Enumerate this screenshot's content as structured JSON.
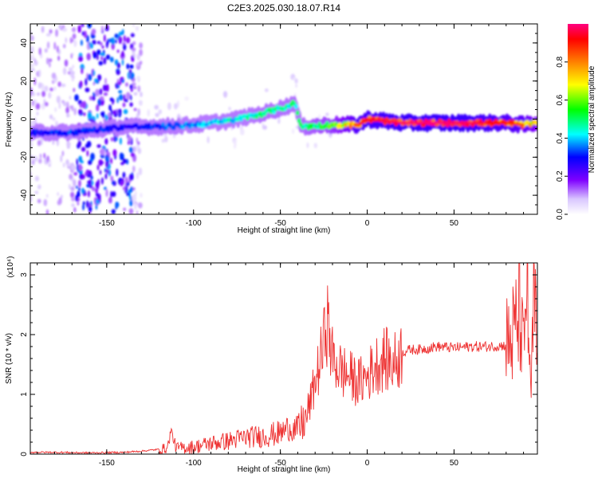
{
  "title": "C2E3.2025.030.18.07.R14",
  "chart_data": [
    {
      "type": "heatmap",
      "xlabel": "Height of straight line (km)",
      "ylabel": "Frequency (Hz)",
      "xlim": [
        -194,
        98
      ],
      "ylim": [
        -50,
        50
      ],
      "xticks": [
        -150,
        -100,
        -50,
        0,
        50
      ],
      "yticks": [
        -40,
        -20,
        0,
        20,
        40
      ],
      "colorbar": {
        "label": "Normalized spectral amplitude",
        "range": [
          0,
          1
        ],
        "ticks": [
          0.0,
          0.2,
          0.4,
          0.6,
          0.8
        ]
      },
      "ridge": {
        "x": [
          -194,
          -170,
          -140,
          -120,
          -100,
          -80,
          -60,
          -45,
          -42,
          -38,
          -20,
          -5,
          0,
          20,
          40,
          60,
          80,
          90,
          98
        ],
        "freq": [
          -7,
          -7,
          -4,
          -4,
          -3,
          -1,
          3,
          7,
          9,
          -4,
          -3,
          -3,
          0,
          -2,
          -2,
          -2,
          -2,
          -3,
          -2
        ],
        "amplitude": [
          0.3,
          0.35,
          0.3,
          0.35,
          0.4,
          0.45,
          0.5,
          0.5,
          0.5,
          0.5,
          0.6,
          0.9,
          0.95,
          0.98,
          1.0,
          0.98,
          0.9,
          0.85,
          0.7
        ]
      }
    },
    {
      "type": "line",
      "xlabel": "Height of straight line (km)",
      "ylabel": "SNR (10 * v/v)",
      "yscale_note": "(x10⁴)",
      "xlim": [
        -194,
        98
      ],
      "ylim": [
        0,
        3.2
      ],
      "xticks": [
        -150,
        -100,
        -50,
        0,
        50
      ],
      "yticks": [
        0,
        1,
        2,
        3
      ],
      "series": [
        {
          "color": "#ee3333",
          "x": [
            -194,
            -180,
            -160,
            -140,
            -130,
            -120,
            -115,
            -113,
            -110,
            -100,
            -90,
            -80,
            -70,
            -60,
            -50,
            -45,
            -40,
            -35,
            -30,
            -25,
            -24,
            -20,
            -15,
            -10,
            -5,
            0,
            5,
            10,
            15,
            20,
            25,
            30,
            40,
            50,
            60,
            70,
            80,
            85,
            88,
            90,
            92,
            94,
            96,
            98
          ],
          "y": [
            0.03,
            0.03,
            0.02,
            0.03,
            0.05,
            0.08,
            0.1,
            0.4,
            0.1,
            0.12,
            0.18,
            0.22,
            0.28,
            0.3,
            0.35,
            0.45,
            0.4,
            0.6,
            1.2,
            1.8,
            2.4,
            1.6,
            1.4,
            1.3,
            1.2,
            1.3,
            1.5,
            1.6,
            1.5,
            1.7,
            1.75,
            1.75,
            1.8,
            1.78,
            1.8,
            1.8,
            1.82,
            2.0,
            2.5,
            1.5,
            3.2,
            0.8,
            2.5,
            1.7
          ]
        }
      ]
    }
  ]
}
